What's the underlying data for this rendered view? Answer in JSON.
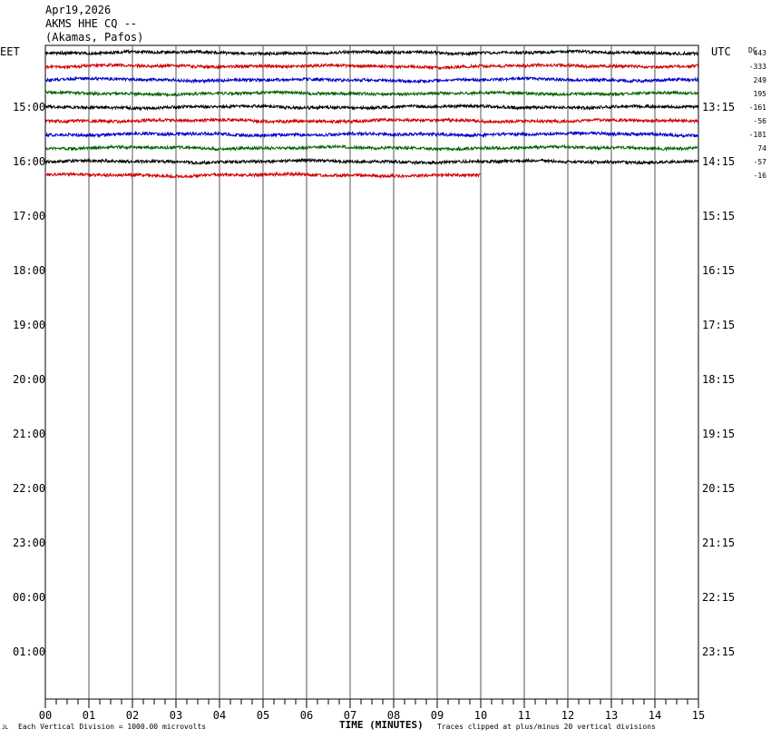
{
  "header": {
    "date": "Apr19,2026",
    "station": "AKMS HHE CQ --",
    "location": "(Akamas, Pafos)"
  },
  "footer": {
    "scale_note": "Each Vertical Division = 1000.00 microvolts",
    "xlabel": "TIME (MINUTES)",
    "clip_note": "Traces clipped at plus/minus 20 vertical divisions",
    "corner_mark": "JL"
  },
  "chart_data": {
    "type": "line",
    "title": "",
    "left_axis_label": "EET",
    "right_axis_label": "UTC",
    "dc_label": "DC",
    "xlabel": "TIME (MINUTES)",
    "x_ticks": [
      "00",
      "01",
      "02",
      "03",
      "04",
      "05",
      "06",
      "07",
      "08",
      "09",
      "10",
      "11",
      "12",
      "13",
      "14",
      "15"
    ],
    "xlim": [
      0,
      15
    ],
    "left_hour_labels": [
      "15:00",
      "16:00",
      "17:00",
      "18:00",
      "19:00",
      "20:00",
      "21:00",
      "22:00",
      "23:00",
      "00:00",
      "01:00"
    ],
    "right_hour_labels": [
      "13:15",
      "14:15",
      "15:15",
      "16:15",
      "17:15",
      "18:15",
      "19:15",
      "20:15",
      "21:15",
      "22:15",
      "23:15"
    ],
    "traces": [
      {
        "row": 0,
        "color": "#000000",
        "dc": "443",
        "end_minute": 15
      },
      {
        "row": 1,
        "color": "#d00000",
        "dc": "-333",
        "end_minute": 15
      },
      {
        "row": 2,
        "color": "#0000c8",
        "dc": "249",
        "end_minute": 15
      },
      {
        "row": 3,
        "color": "#006400",
        "dc": "195",
        "end_minute": 15
      },
      {
        "row": 4,
        "color": "#000000",
        "dc": "-161",
        "end_minute": 15
      },
      {
        "row": 5,
        "color": "#d00000",
        "dc": "-56",
        "end_minute": 15
      },
      {
        "row": 6,
        "color": "#0000c8",
        "dc": "-181",
        "end_minute": 15
      },
      {
        "row": 7,
        "color": "#006400",
        "dc": "74",
        "end_minute": 15
      },
      {
        "row": 8,
        "color": "#000000",
        "dc": "-57",
        "end_minute": 15
      },
      {
        "row": 9,
        "color": "#d00000",
        "dc": "-16",
        "end_minute": 10
      }
    ]
  }
}
